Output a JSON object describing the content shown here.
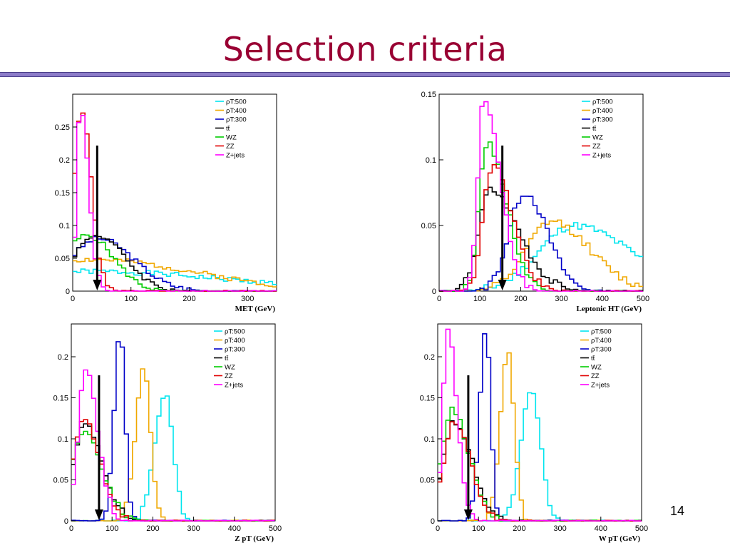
{
  "slide": {
    "title": "Selection criteria",
    "page_number": "14"
  },
  "colors": {
    "rho500": "#00e5ee",
    "rho400": "#f0a800",
    "rho300": "#0000c8",
    "ttbar": "#000000",
    "wz": "#00cc00",
    "zz": "#e00000",
    "zjets": "#ff00ff",
    "title": "#990033",
    "rule": "#8c7cc8"
  },
  "chart_data": [
    {
      "type": "line",
      "title": "",
      "xlabel": "MET (GeV)",
      "ylabel": "",
      "xlim": [
        0,
        350
      ],
      "ylim": [
        0,
        0.3
      ],
      "xticks": [
        0,
        100,
        200,
        300
      ],
      "yticks": [
        0,
        0.05,
        0.1,
        0.15,
        0.2,
        0.25
      ],
      "grid": false,
      "legend_position": "top-right",
      "cut_arrow": {
        "x": 42
      },
      "series": [
        {
          "name": "ρT:500",
          "color_key": "rho500",
          "peak": 33,
          "peak_y": 0.03,
          "width": 200,
          "sigma_l": 200,
          "sigma_r": 230,
          "base": 0.035,
          "wiggle": 0.004,
          "seed": 1
        },
        {
          "name": "ρT:400",
          "color_key": "rho400",
          "peak": 30,
          "peak_y": 0.048,
          "width": 150,
          "sigma_l": 150,
          "sigma_r": 180,
          "base": 0.04,
          "wiggle": 0.004,
          "seed": 2
        },
        {
          "name": "ρT:300",
          "color_key": "rho300",
          "peak": 45,
          "peak_y": 0.08,
          "width": 55,
          "sigma_l": 50,
          "sigma_r": 60,
          "base": 0.07,
          "wiggle": 0.004,
          "seed": 3
        },
        {
          "name": "tt̄",
          "color_key": "ttbar",
          "peak": 42,
          "peak_y": 0.085,
          "width": 50,
          "sigma_l": 42,
          "sigma_r": 48,
          "base": 0.0,
          "wiggle": 0.004,
          "seed": 4
        },
        {
          "name": "WZ",
          "color_key": "wz",
          "peak": 25,
          "peak_y": 0.085,
          "width": 40,
          "sigma_l": 40,
          "sigma_r": 45,
          "base": 0.0,
          "wiggle": 0.004,
          "seed": 5
        },
        {
          "name": "ZZ",
          "color_key": "zz",
          "peak": 15,
          "peak_y": 0.28,
          "width": 18,
          "sigma_l": 12,
          "sigma_r": 17,
          "base": 0.0,
          "wiggle": 0.006,
          "seed": 6
        },
        {
          "name": "Z+jets",
          "color_key": "zjets",
          "peak": 13,
          "peak_y": 0.285,
          "width": 14,
          "sigma_l": 6,
          "sigma_r": 14,
          "base": 0.0,
          "wiggle": 0.006,
          "seed": 7
        }
      ]
    },
    {
      "type": "line",
      "title": "",
      "xlabel": "Leptonic HT (GeV)",
      "ylabel": "",
      "xlim": [
        0,
        500
      ],
      "ylim": [
        0,
        0.15
      ],
      "xticks": [
        0,
        100,
        200,
        300,
        400,
        500
      ],
      "yticks": [
        0,
        0.05,
        0.1,
        0.15
      ],
      "grid": false,
      "legend_position": "top-right",
      "cut_arrow": {
        "x": 155
      },
      "series": [
        {
          "name": "ρT:500",
          "color_key": "rho500",
          "peak": 330,
          "peak_y": 0.05,
          "width": 85,
          "sigma_l": 85,
          "sigma_r": 140,
          "base": 0.0,
          "wiggle": 0.003,
          "seed": 11
        },
        {
          "name": "ρT:400",
          "color_key": "rho400",
          "peak": 275,
          "peak_y": 0.053,
          "width": 60,
          "sigma_l": 60,
          "sigma_r": 95,
          "base": 0.0,
          "wiggle": 0.003,
          "seed": 12
        },
        {
          "name": "ρT:300",
          "color_key": "rho300",
          "peak": 210,
          "peak_y": 0.075,
          "width": 40,
          "sigma_l": 38,
          "sigma_r": 55,
          "base": 0.0,
          "wiggle": 0.003,
          "seed": 13
        },
        {
          "name": "tt̄",
          "color_key": "ttbar",
          "peak": 125,
          "peak_y": 0.077,
          "width": 28,
          "sigma_l": 28,
          "sigma_r": 70,
          "base": 0.0,
          "wiggle": 0.003,
          "seed": 14
        },
        {
          "name": "WZ",
          "color_key": "wz",
          "peak": 118,
          "peak_y": 0.112,
          "width": 20,
          "sigma_l": 20,
          "sigma_r": 48,
          "base": 0.0,
          "wiggle": 0.003,
          "seed": 15
        },
        {
          "name": "ZZ",
          "color_key": "zz",
          "peak": 130,
          "peak_y": 0.095,
          "width": 22,
          "sigma_l": 22,
          "sigma_r": 50,
          "base": 0.0,
          "wiggle": 0.003,
          "seed": 16
        },
        {
          "name": "Z+jets",
          "color_key": "zjets",
          "peak": 110,
          "peak_y": 0.146,
          "width": 15,
          "sigma_l": 15,
          "sigma_r": 40,
          "base": 0.0,
          "wiggle": 0.003,
          "seed": 17
        }
      ]
    },
    {
      "type": "line",
      "title": "",
      "xlabel": "Z pT (GeV)",
      "ylabel": "",
      "xlim": [
        0,
        500
      ],
      "ylim": [
        0,
        0.24
      ],
      "xticks": [
        0,
        100,
        200,
        300,
        400,
        500
      ],
      "yticks": [
        0,
        0.05,
        0.1,
        0.15,
        0.2
      ],
      "grid": false,
      "legend_position": "top-right",
      "cut_arrow": {
        "x": 68
      },
      "series": [
        {
          "name": "ρT:500",
          "color_key": "rho500",
          "peak": 230,
          "peak_y": 0.155,
          "width": 22,
          "sigma_l": 25,
          "sigma_r": 20,
          "base": 0.0,
          "wiggle": 0.004,
          "seed": 21
        },
        {
          "name": "ρT:400",
          "color_key": "rho400",
          "peak": 178,
          "peak_y": 0.19,
          "width": 18,
          "sigma_l": 20,
          "sigma_r": 16,
          "base": 0.0,
          "wiggle": 0.004,
          "seed": 22
        },
        {
          "name": "ρT:300",
          "color_key": "rho300",
          "peak": 120,
          "peak_y": 0.228,
          "width": 13,
          "sigma_l": 15,
          "sigma_r": 12,
          "base": 0.0,
          "wiggle": 0.004,
          "seed": 23
        },
        {
          "name": "tt̄",
          "color_key": "ttbar",
          "peak": 35,
          "peak_y": 0.118,
          "width": 30,
          "sigma_l": 28,
          "sigma_r": 42,
          "base": 0.0,
          "wiggle": 0.004,
          "seed": 24
        },
        {
          "name": "WZ",
          "color_key": "wz",
          "peak": 30,
          "peak_y": 0.11,
          "width": 30,
          "sigma_l": 28,
          "sigma_r": 45,
          "base": 0.0,
          "wiggle": 0.004,
          "seed": 25
        },
        {
          "name": "ZZ",
          "color_key": "zz",
          "peak": 30,
          "peak_y": 0.125,
          "width": 30,
          "sigma_l": 25,
          "sigma_r": 40,
          "base": 0.0,
          "wiggle": 0.004,
          "seed": 26
        },
        {
          "name": "Z+jets",
          "color_key": "zjets",
          "peak": 35,
          "peak_y": 0.185,
          "width": 20,
          "sigma_l": 18,
          "sigma_r": 30,
          "base": 0.0,
          "wiggle": 0.004,
          "seed": 27
        }
      ]
    },
    {
      "type": "line",
      "title": "",
      "xlabel": "W pT (GeV)",
      "ylabel": "",
      "xlim": [
        0,
        500
      ],
      "ylim": [
        0,
        0.24
      ],
      "xticks": [
        0,
        100,
        200,
        300,
        400,
        500
      ],
      "yticks": [
        0,
        0.05,
        0.1,
        0.15,
        0.2
      ],
      "grid": false,
      "legend_position": "top-right",
      "cut_arrow": {
        "x": 75
      },
      "series": [
        {
          "name": "ρT:500",
          "color_key": "rho500",
          "peak": 230,
          "peak_y": 0.163,
          "width": 22,
          "sigma_l": 25,
          "sigma_r": 22,
          "base": 0.0,
          "wiggle": 0.004,
          "seed": 31
        },
        {
          "name": "ρT:400",
          "color_key": "rho400",
          "peak": 172,
          "peak_y": 0.205,
          "width": 16,
          "sigma_l": 18,
          "sigma_r": 16,
          "base": 0.0,
          "wiggle": 0.004,
          "seed": 32
        },
        {
          "name": "ρT:300",
          "color_key": "rho300",
          "peak": 118,
          "peak_y": 0.232,
          "width": 13,
          "sigma_l": 15,
          "sigma_r": 12,
          "base": 0.0,
          "wiggle": 0.004,
          "seed": 33
        },
        {
          "name": "tt̄",
          "color_key": "ttbar",
          "peak": 40,
          "peak_y": 0.12,
          "width": 30,
          "sigma_l": 28,
          "sigma_r": 45,
          "base": 0.0,
          "wiggle": 0.004,
          "seed": 34
        },
        {
          "name": "WZ",
          "color_key": "wz",
          "peak": 35,
          "peak_y": 0.135,
          "width": 28,
          "sigma_l": 25,
          "sigma_r": 42,
          "base": 0.0,
          "wiggle": 0.004,
          "seed": 35
        },
        {
          "name": "ZZ",
          "color_key": "zz",
          "peak": 40,
          "peak_y": 0.12,
          "width": 28,
          "sigma_l": 25,
          "sigma_r": 40,
          "base": 0.0,
          "wiggle": 0.004,
          "seed": 36
        },
        {
          "name": "Z+jets",
          "color_key": "zjets",
          "peak": 25,
          "peak_y": 0.232,
          "width": 14,
          "sigma_l": 12,
          "sigma_r": 22,
          "base": 0.0,
          "wiggle": 0.004,
          "seed": 37
        }
      ]
    }
  ]
}
